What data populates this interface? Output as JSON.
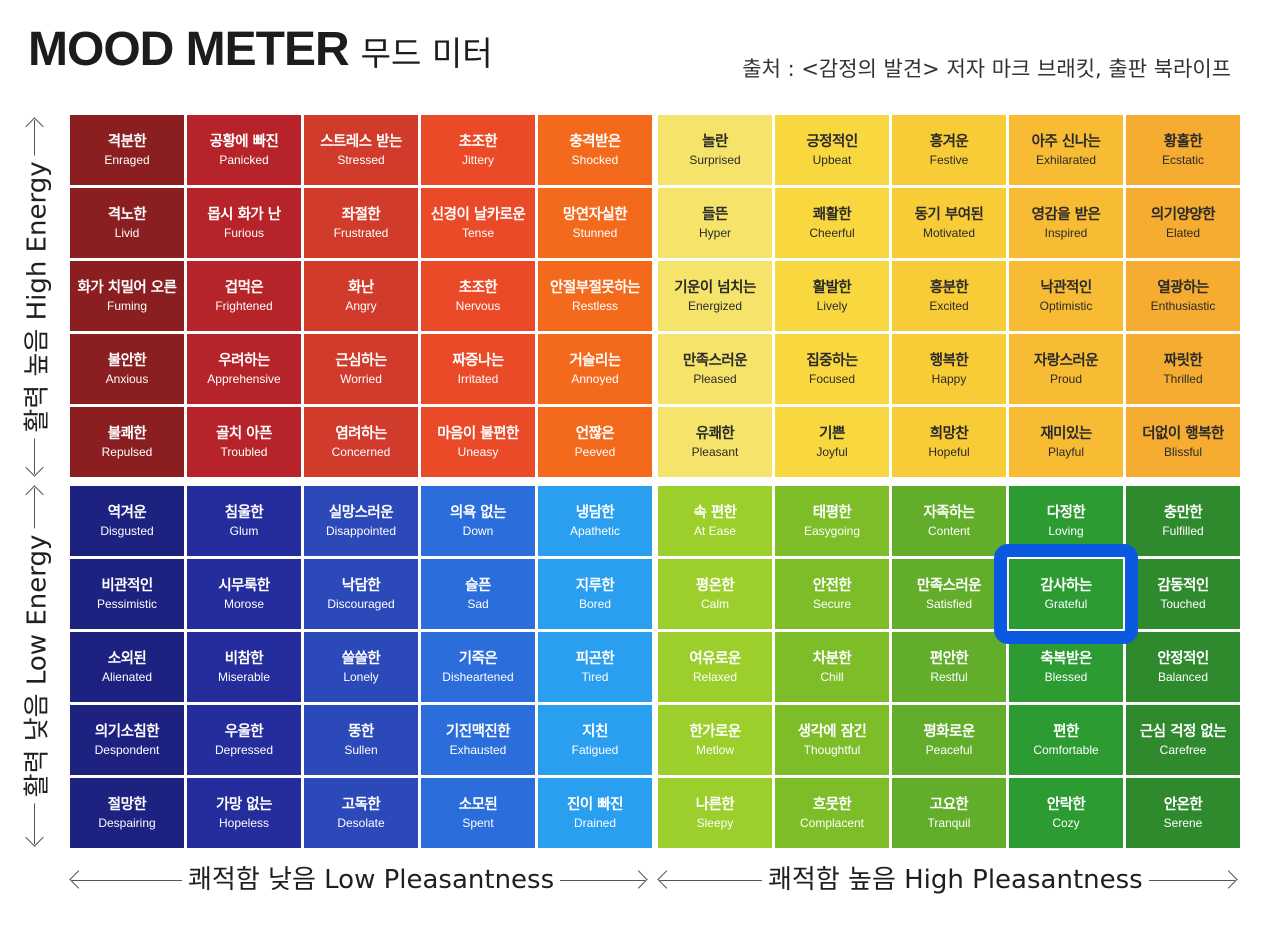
{
  "title": {
    "main": "MOOD METER",
    "sub": "무드 미터"
  },
  "source": "출처 : <감정의 발견>  저자 마크 브래킷, 출판 북라이프",
  "axes": {
    "x_low": "쾌적함 낮음 Low Pleasantness",
    "x_high": "쾌적함 높음  High Pleasantness",
    "y_high": "활력 높음 High Energy",
    "y_low": "활력 낮음 Low Energy"
  },
  "highlight": {
    "quadrant": "bottom_right",
    "row": 1,
    "col": 3,
    "color": "#0b59e0"
  },
  "quadrants": {
    "top_left": {
      "colors": [
        [
          "#8a1e20",
          "#b6242a",
          "#d13b2c",
          "#ea4a27",
          "#f36a1d"
        ],
        [
          "#8a1e20",
          "#b6242a",
          "#d13b2c",
          "#ea4a27",
          "#f36a1d"
        ],
        [
          "#8a1e20",
          "#b6242a",
          "#d13b2c",
          "#ea4a27",
          "#f36a1d"
        ],
        [
          "#8a1e20",
          "#b6242a",
          "#d13b2c",
          "#ea4a27",
          "#f36a1d"
        ],
        [
          "#8a1e20",
          "#b6242a",
          "#d13b2c",
          "#ea4a27",
          "#f36a1d"
        ]
      ],
      "cells": [
        [
          {
            "ko": "격분한",
            "en": "Enraged"
          },
          {
            "ko": "공황에 빠진",
            "en": "Panicked"
          },
          {
            "ko": "스트레스 받는",
            "en": "Stressed"
          },
          {
            "ko": "초조한",
            "en": "Jittery"
          },
          {
            "ko": "충격받은",
            "en": "Shocked"
          }
        ],
        [
          {
            "ko": "격노한",
            "en": "Livid"
          },
          {
            "ko": "몹시 화가 난",
            "en": "Furious"
          },
          {
            "ko": "좌절한",
            "en": "Frustrated"
          },
          {
            "ko": "신경이 날카로운",
            "en": "Tense"
          },
          {
            "ko": "망연자실한",
            "en": "Stunned"
          }
        ],
        [
          {
            "ko": "화가 치밀어 오른",
            "en": "Fuming"
          },
          {
            "ko": "겁먹은",
            "en": "Frightened"
          },
          {
            "ko": "화난",
            "en": "Angry"
          },
          {
            "ko": "초조한",
            "en": "Nervous"
          },
          {
            "ko": "안절부절못하는",
            "en": "Restless"
          }
        ],
        [
          {
            "ko": "불안한",
            "en": "Anxious"
          },
          {
            "ko": "우려하는",
            "en": "Apprehensive"
          },
          {
            "ko": "근심하는",
            "en": "Worried"
          },
          {
            "ko": "짜증나는",
            "en": "Irritated"
          },
          {
            "ko": "거슬리는",
            "en": "Annoyed"
          }
        ],
        [
          {
            "ko": "불쾌한",
            "en": "Repulsed"
          },
          {
            "ko": "골치 아픈",
            "en": "Troubled"
          },
          {
            "ko": "염려하는",
            "en": "Concerned"
          },
          {
            "ko": "마음이 불편한",
            "en": "Uneasy"
          },
          {
            "ko": "언짢은",
            "en": "Peeved"
          }
        ]
      ]
    },
    "top_right": {
      "colors": [
        [
          "#f6e46a",
          "#f9d83f",
          "#f8cc36",
          "#f7bc33",
          "#f5ac30"
        ],
        [
          "#f6e46a",
          "#f9d83f",
          "#f8cc36",
          "#f7bc33",
          "#f5ac30"
        ],
        [
          "#f6e46a",
          "#f9d83f",
          "#f8cc36",
          "#f7bc33",
          "#f5ac30"
        ],
        [
          "#f6e46a",
          "#f9d83f",
          "#f8cc36",
          "#f7bc33",
          "#f5ac30"
        ],
        [
          "#f6e46a",
          "#f9d83f",
          "#f8cc36",
          "#f7bc33",
          "#f5ac30"
        ]
      ],
      "cells": [
        [
          {
            "ko": "놀란",
            "en": "Surprised"
          },
          {
            "ko": "긍정적인",
            "en": "Upbeat"
          },
          {
            "ko": "흥겨운",
            "en": "Festive"
          },
          {
            "ko": "아주 신나는",
            "en": "Exhilarated"
          },
          {
            "ko": "황홀한",
            "en": "Ecstatic"
          }
        ],
        [
          {
            "ko": "들뜬",
            "en": "Hyper"
          },
          {
            "ko": "쾌활한",
            "en": "Cheerful"
          },
          {
            "ko": "동기 부여된",
            "en": "Motivated"
          },
          {
            "ko": "영감을 받은",
            "en": "Inspired"
          },
          {
            "ko": "의기양양한",
            "en": "Elated"
          }
        ],
        [
          {
            "ko": "기운이 넘치는",
            "en": "Energized"
          },
          {
            "ko": "활발한",
            "en": "Lively"
          },
          {
            "ko": "흥분한",
            "en": "Excited"
          },
          {
            "ko": "낙관적인",
            "en": "Optimistic"
          },
          {
            "ko": "열광하는",
            "en": "Enthusiastic"
          }
        ],
        [
          {
            "ko": "만족스러운",
            "en": "Pleased"
          },
          {
            "ko": "집중하는",
            "en": "Focused"
          },
          {
            "ko": "행복한",
            "en": "Happy"
          },
          {
            "ko": "자랑스러운",
            "en": "Proud"
          },
          {
            "ko": "짜릿한",
            "en": "Thrilled"
          }
        ],
        [
          {
            "ko": "유쾌한",
            "en": "Pleasant"
          },
          {
            "ko": "기쁜",
            "en": "Joyful"
          },
          {
            "ko": "희망찬",
            "en": "Hopeful"
          },
          {
            "ko": "재미있는",
            "en": "Playful"
          },
          {
            "ko": "더없이 행복한",
            "en": "Blissful"
          }
        ]
      ]
    },
    "bottom_left": {
      "colors": [
        [
          "#1d2281",
          "#252c9c",
          "#2c49b9",
          "#2b6edb",
          "#2a9ff0"
        ],
        [
          "#1d2281",
          "#252c9c",
          "#2c49b9",
          "#2b6edb",
          "#2a9ff0"
        ],
        [
          "#1d2281",
          "#252c9c",
          "#2c49b9",
          "#2b6edb",
          "#2a9ff0"
        ],
        [
          "#1d2281",
          "#252c9c",
          "#2c49b9",
          "#2b6edb",
          "#2a9ff0"
        ],
        [
          "#1d2281",
          "#252c9c",
          "#2c49b9",
          "#2b6edb",
          "#2a9ff0"
        ]
      ],
      "cells": [
        [
          {
            "ko": "역겨운",
            "en": "Disgusted"
          },
          {
            "ko": "침울한",
            "en": "Glum"
          },
          {
            "ko": "실망스러운",
            "en": "Disappointed"
          },
          {
            "ko": "의욕 없는",
            "en": "Down"
          },
          {
            "ko": "냉담한",
            "en": "Apathetic"
          }
        ],
        [
          {
            "ko": "비관적인",
            "en": "Pessimistic"
          },
          {
            "ko": "시무룩한",
            "en": "Morose"
          },
          {
            "ko": "낙담한",
            "en": "Discouraged"
          },
          {
            "ko": "슬픈",
            "en": "Sad"
          },
          {
            "ko": "지루한",
            "en": "Bored"
          }
        ],
        [
          {
            "ko": "소외된",
            "en": "Alienated"
          },
          {
            "ko": "비참한",
            "en": "Miserable"
          },
          {
            "ko": "쓸쓸한",
            "en": "Lonely"
          },
          {
            "ko": "기죽은",
            "en": "Disheartened"
          },
          {
            "ko": "피곤한",
            "en": "Tired"
          }
        ],
        [
          {
            "ko": "의기소침한",
            "en": "Despondent"
          },
          {
            "ko": "우울한",
            "en": "Depressed"
          },
          {
            "ko": "뚱한",
            "en": "Sullen"
          },
          {
            "ko": "기진맥진한",
            "en": "Exhausted"
          },
          {
            "ko": "지친",
            "en": "Fatigued"
          }
        ],
        [
          {
            "ko": "절망한",
            "en": "Despairing"
          },
          {
            "ko": "가망 없는",
            "en": "Hopeless"
          },
          {
            "ko": "고독한",
            "en": "Desolate"
          },
          {
            "ko": "소모된",
            "en": "Spent"
          },
          {
            "ko": "진이 빠진",
            "en": "Drained"
          }
        ]
      ]
    },
    "bottom_right": {
      "colors": [
        [
          "#9ccf2b",
          "#7cbd28",
          "#62ad2a",
          "#2b9b32",
          "#2f8a2e"
        ],
        [
          "#9ccf2b",
          "#7cbd28",
          "#62ad2a",
          "#2b9b32",
          "#2f8a2e"
        ],
        [
          "#9ccf2b",
          "#7cbd28",
          "#62ad2a",
          "#2b9b32",
          "#2f8a2e"
        ],
        [
          "#9ccf2b",
          "#7cbd28",
          "#62ad2a",
          "#2b9b32",
          "#2f8a2e"
        ],
        [
          "#9ccf2b",
          "#7cbd28",
          "#62ad2a",
          "#2b9b32",
          "#2f8a2e"
        ]
      ],
      "cells": [
        [
          {
            "ko": "속 편한",
            "en": "At Ease"
          },
          {
            "ko": "태평한",
            "en": "Easygoing"
          },
          {
            "ko": "자족하는",
            "en": "Content"
          },
          {
            "ko": "다정한",
            "en": "Loving"
          },
          {
            "ko": "충만한",
            "en": "Fulfilled"
          }
        ],
        [
          {
            "ko": "평온한",
            "en": "Calm"
          },
          {
            "ko": "안전한",
            "en": "Secure"
          },
          {
            "ko": "만족스러운",
            "en": "Satisfied"
          },
          {
            "ko": "감사하는",
            "en": "Grateful"
          },
          {
            "ko": "감동적인",
            "en": "Touched"
          }
        ],
        [
          {
            "ko": "여유로운",
            "en": "Relaxed"
          },
          {
            "ko": "차분한",
            "en": "Chill"
          },
          {
            "ko": "편안한",
            "en": "Restful"
          },
          {
            "ko": "축복받은",
            "en": "Blessed"
          },
          {
            "ko": "안정적인",
            "en": "Balanced"
          }
        ],
        [
          {
            "ko": "한가로운",
            "en": "Metlow"
          },
          {
            "ko": "생각에 잠긴",
            "en": "Thoughtful"
          },
          {
            "ko": "평화로운",
            "en": "Peaceful"
          },
          {
            "ko": "편한",
            "en": "Comfortable"
          },
          {
            "ko": "근심 걱정 없는",
            "en": "Carefree"
          }
        ],
        [
          {
            "ko": "나른한",
            "en": "Sleepy"
          },
          {
            "ko": "흐뭇한",
            "en": "Complacent"
          },
          {
            "ko": "고요한",
            "en": "Tranquil"
          },
          {
            "ko": "안락한",
            "en": "Cozy"
          },
          {
            "ko": "안온한",
            "en": "Serene"
          }
        ]
      ]
    }
  }
}
